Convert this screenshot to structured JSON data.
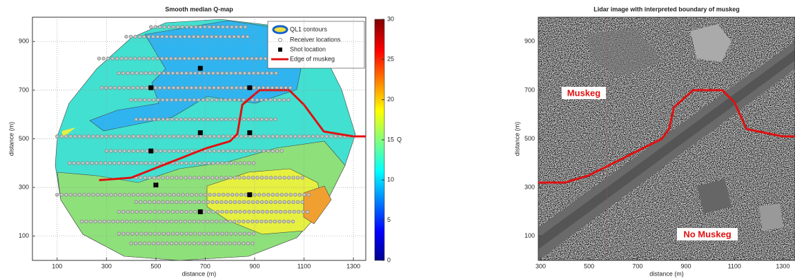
{
  "chart_data": [
    {
      "type": "qmap",
      "title": "Smooth median Q-map",
      "x_label": "distance (m)",
      "y_label": "distance (m)",
      "xlim": [
        0,
        1350
      ],
      "ylim": [
        0,
        1000
      ],
      "xticks": [
        100,
        300,
        500,
        700,
        900,
        1100,
        1300
      ],
      "yticks": [
        100,
        300,
        500,
        700,
        900
      ],
      "grid": true,
      "contours_label": "QL1 contours",
      "receivers": {
        "name": "Receiver locations",
        "color": "#888888",
        "lines": [
          {
            "y": 960,
            "x": [
              480,
              880
            ]
          },
          {
            "y": 920,
            "x": [
              380,
              880
            ]
          },
          {
            "y": 830,
            "x": [
              270,
              1010
            ]
          },
          {
            "y": 770,
            "x": [
              350,
              990
            ]
          },
          {
            "y": 710,
            "x": [
              280,
              1060
            ]
          },
          {
            "y": 660,
            "x": [
              400,
              1040
            ]
          },
          {
            "y": 580,
            "x": [
              420,
              1000
            ]
          },
          {
            "y": 510,
            "x": [
              100,
              1300
            ]
          },
          {
            "y": 450,
            "x": [
              300,
              1020
            ]
          },
          {
            "y": 400,
            "x": [
              150,
              900
            ]
          },
          {
            "y": 340,
            "x": [
              420,
              1110
            ]
          },
          {
            "y": 270,
            "x": [
              100,
              1130
            ]
          },
          {
            "y": 240,
            "x": [
              420,
              1100
            ]
          },
          {
            "y": 200,
            "x": [
              350,
              1120
            ]
          },
          {
            "y": 160,
            "x": [
              200,
              1060
            ]
          },
          {
            "y": 110,
            "x": [
              350,
              900
            ]
          },
          {
            "y": 70,
            "x": [
              400,
              900
            ]
          }
        ]
      },
      "shots": {
        "name": "Shot location",
        "color": "#000000",
        "x": [
          480,
          680,
          880,
          680,
          880,
          480,
          500,
          880,
          680
        ],
        "y": [
          710,
          790,
          710,
          525,
          525,
          450,
          310,
          270,
          200
        ]
      },
      "edge": {
        "name": "Edge of muskeg",
        "color": "#e01010",
        "x": [
          270,
          400,
          500,
          600,
          700,
          800,
          830,
          850,
          920,
          1040,
          1100,
          1180,
          1300,
          1350
        ],
        "y": [
          330,
          340,
          380,
          420,
          460,
          490,
          520,
          640,
          700,
          700,
          640,
          530,
          510,
          510
        ]
      },
      "colorbar": {
        "label": "Q",
        "clim": [
          0,
          30
        ],
        "ticks": [
          0,
          5,
          10,
          15,
          20,
          25,
          30
        ]
      }
    },
    {
      "type": "lidar",
      "title": "Lidar image with interpreted boundary of muskeg",
      "x_label": "distance (m)",
      "y_label": "distance (m)",
      "xlim": [
        290,
        1350
      ],
      "ylim": [
        0,
        1000
      ],
      "xticks": [
        300,
        500,
        700,
        900,
        1100,
        1300
      ],
      "yticks": [
        100,
        300,
        500,
        700,
        900
      ],
      "grid": false,
      "edge": {
        "color": "#e01010",
        "x": [
          290,
          400,
          500,
          600,
          700,
          800,
          830,
          850,
          930,
          1050,
          1100,
          1150,
          1300,
          1350
        ],
        "y": [
          320,
          320,
          350,
          400,
          450,
          500,
          540,
          630,
          700,
          700,
          650,
          540,
          510,
          510
        ]
      },
      "annotations": [
        "Muskeg",
        "No Muskeg"
      ]
    }
  ]
}
